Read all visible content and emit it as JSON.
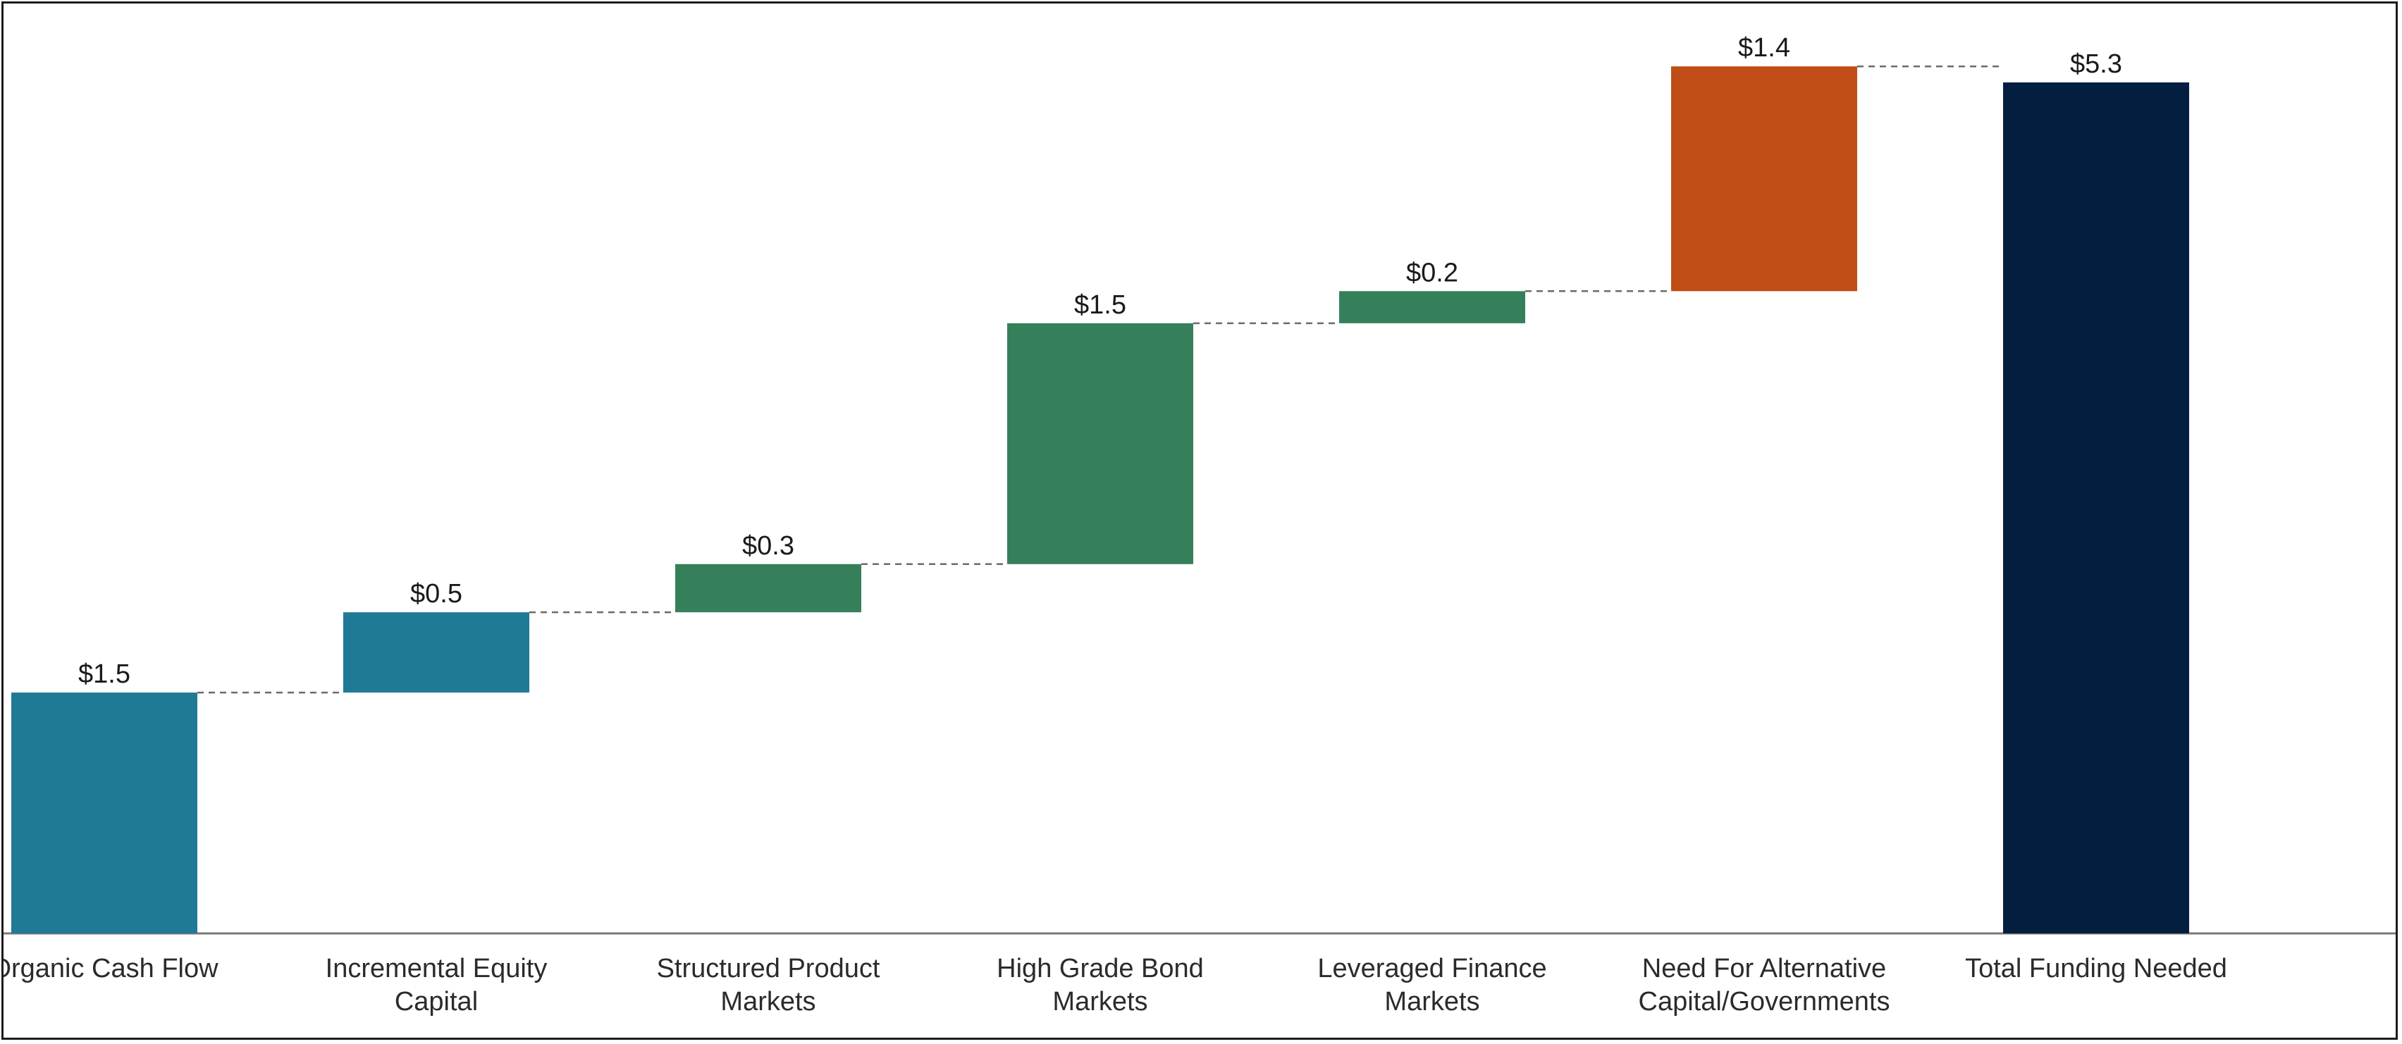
{
  "chart_data": {
    "type": "waterfall",
    "title": "",
    "xlabel": "",
    "ylabel": "",
    "ylim": [
      0,
      5.3
    ],
    "grid": false,
    "legend": "none",
    "categories": [
      [
        "Organic Cash Flow"
      ],
      [
        "Incremental Equity",
        "Capital"
      ],
      [
        "Structured Product",
        "Markets"
      ],
      [
        "High Grade Bond",
        "Markets"
      ],
      [
        "Leveraged Finance",
        "Markets"
      ],
      [
        "Need For Alternative",
        "Capital/Governments"
      ],
      [
        "Total Funding Needed"
      ]
    ],
    "values": [
      1.5,
      0.5,
      0.3,
      1.5,
      0.2,
      1.4,
      5.3
    ],
    "labels": [
      "$1.5",
      "$0.5",
      "$0.3",
      "$1.5",
      "$0.2",
      "$1.4",
      "$5.3"
    ],
    "kinds": [
      "start",
      "step",
      "step",
      "step",
      "step",
      "step",
      "total"
    ],
    "colors": [
      "#1f7a96",
      "#1f7a96",
      "#35805a",
      "#35805a",
      "#35805a",
      "#c04d15",
      "#041e40"
    ]
  }
}
